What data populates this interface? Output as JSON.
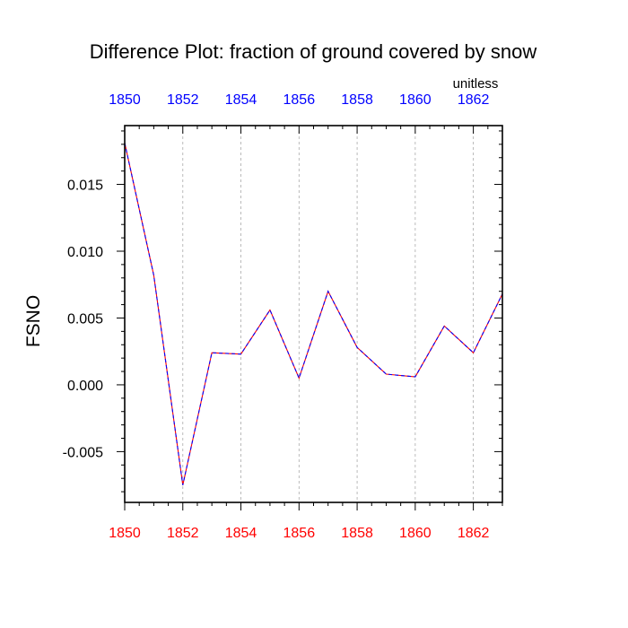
{
  "chart_data": {
    "type": "line",
    "title": "Difference Plot: fraction of ground covered by snow",
    "units": "unitless",
    "ylabel": "FSNO",
    "xlim": [
      1850,
      1863
    ],
    "ylim": [
      -0.0088,
      0.0194
    ],
    "x_ticks": [
      1850,
      1852,
      1854,
      1856,
      1858,
      1860,
      1862
    ],
    "x_tick_labels": [
      "1850",
      "1852",
      "1854",
      "1856",
      "1858",
      "1860",
      "1862"
    ],
    "y_ticks": [
      -0.005,
      0.0,
      0.005,
      0.01,
      0.015
    ],
    "y_tick_labels": [
      "-0.005",
      "0.000",
      "0.005",
      "0.010",
      "0.015"
    ],
    "grid": "vertical dashed at major x ticks",
    "colors": {
      "top_axis_labels": "#0000ff",
      "bottom_axis_labels": "#ff0000",
      "series_line_a": "#0000ff",
      "series_line_b": "#ff0000",
      "grid": "#aaaaaa",
      "frame": "#000000"
    },
    "series": [
      {
        "x": [
          1850,
          1851,
          1852,
          1853,
          1854,
          1855,
          1856,
          1857,
          1858,
          1859,
          1860,
          1861,
          1862,
          1863
        ],
        "values": [
          0.0181,
          0.0082,
          -0.0075,
          0.0024,
          0.0023,
          0.0056,
          0.0005,
          0.007,
          0.0028,
          0.0008,
          0.0006,
          0.0044,
          0.0024,
          0.0068
        ]
      }
    ]
  }
}
